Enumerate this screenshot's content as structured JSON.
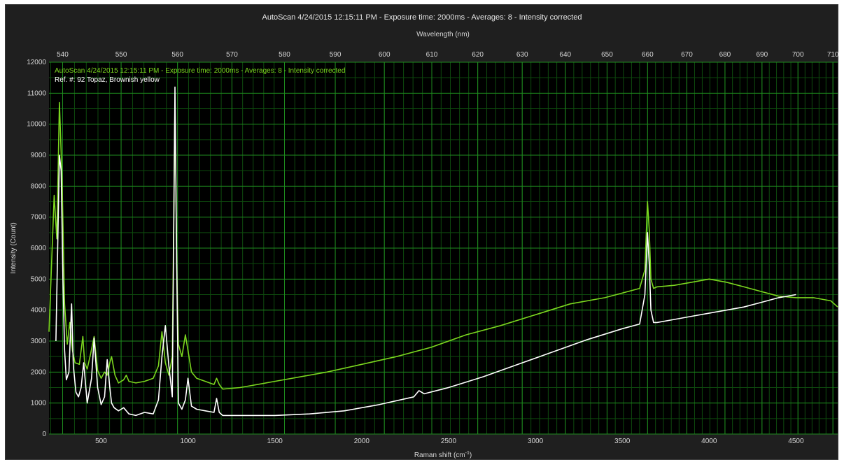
{
  "window_title": "AutoScan 4/24/2015 12:15:11 PM - Exposure time: 2000ms - Averages: 8 - Intensity corrected",
  "colors": {
    "background": "#1f1f1f",
    "plot_background": "#000000",
    "major_grid": "#1f8c1f",
    "minor_grid": "#0e4a0e",
    "sample_series": "#7bd61f",
    "reference_series": "#ffffff",
    "text": "#d6d6d6"
  },
  "chart_data": {
    "type": "line",
    "title": "AutoScan 4/24/2015 12:15:11 PM - Exposure time: 2000ms - Averages: 8 - Intensity corrected",
    "xlabel": "Raman shift (cm",
    "xlabel_sup": "-1",
    "xlabel_suffix": ")",
    "x2label": "Wavelength (nm)",
    "ylabel": "Intensity (Count)",
    "xlim": [
      200,
      4740
    ],
    "ylim": [
      0,
      12000
    ],
    "x_ticks": [
      500,
      1000,
      1500,
      2000,
      2500,
      3000,
      3500,
      4000,
      4500
    ],
    "y_ticks": [
      0,
      1000,
      2000,
      3000,
      4000,
      5000,
      6000,
      7000,
      8000,
      9000,
      10000,
      11000,
      12000
    ],
    "wavelength_ticks": [
      540,
      550,
      560,
      570,
      580,
      590,
      600,
      610,
      620,
      630,
      640,
      650,
      660,
      670,
      680,
      690,
      700,
      710
    ],
    "grid": true,
    "legend_placement": "top-left",
    "series": [
      {
        "name": "AutoScan 4/24/2015 12:15:11 PM - Exposure time: 2000ms - Averages: 8 - Intensity corrected",
        "color": "#7bd61f",
        "x": [
          200,
          215,
          230,
          245,
          260,
          275,
          290,
          305,
          320,
          335,
          350,
          375,
          395,
          405,
          420,
          440,
          460,
          480,
          500,
          520,
          535,
          550,
          560,
          580,
          600,
          630,
          645,
          660,
          700,
          750,
          800,
          830,
          850,
          870,
          890,
          910,
          925,
          935,
          945,
          965,
          985,
          1000,
          1020,
          1050,
          1100,
          1150,
          1165,
          1180,
          1200,
          1300,
          1500,
          1800,
          2000,
          2200,
          2400,
          2600,
          2800,
          3000,
          3200,
          3400,
          3600,
          3630,
          3645,
          3655,
          3665,
          3680,
          3700,
          3800,
          3900,
          4000,
          4100,
          4200,
          4300,
          4400,
          4500,
          4600,
          4700,
          4740
        ],
        "y": [
          3300,
          5500,
          7700,
          6300,
          10700,
          8300,
          4200,
          2900,
          3600,
          2700,
          2300,
          2250,
          3150,
          2300,
          2100,
          2600,
          3150,
          2050,
          1800,
          2000,
          1900,
          2300,
          2500,
          1900,
          1650,
          1750,
          1900,
          1700,
          1650,
          1700,
          1800,
          2200,
          3300,
          2300,
          1900,
          2500,
          10700,
          5500,
          2900,
          2500,
          3200,
          2700,
          2000,
          1800,
          1700,
          1600,
          1800,
          1600,
          1450,
          1500,
          1700,
          2000,
          2250,
          2500,
          2800,
          3200,
          3500,
          3850,
          4200,
          4400,
          4700,
          5300,
          7500,
          6600,
          5000,
          4700,
          4750,
          4800,
          4900,
          5000,
          4900,
          4750,
          4600,
          4450,
          4400,
          4400,
          4300,
          4100
        ]
      },
      {
        "name": "Ref. #: 92 Topaz, Brownish yellow",
        "color": "#ffffff",
        "x": [
          240,
          250,
          260,
          270,
          280,
          290,
          300,
          315,
          330,
          340,
          355,
          370,
          385,
          400,
          420,
          445,
          460,
          480,
          500,
          520,
          535,
          550,
          560,
          575,
          600,
          630,
          645,
          660,
          700,
          750,
          800,
          830,
          850,
          870,
          890,
          910,
          925,
          935,
          945,
          965,
          985,
          1000,
          1020,
          1050,
          1100,
          1150,
          1165,
          1180,
          1200,
          1300,
          1500,
          1700,
          1900,
          2100,
          2300,
          2330,
          2360,
          2500,
          2700,
          2900,
          3100,
          3300,
          3500,
          3600,
          3630,
          3645,
          3655,
          3665,
          3680,
          3700,
          3800,
          3900,
          4000,
          4100,
          4200,
          4300,
          4400,
          4500
        ],
        "y": [
          3000,
          6000,
          9000,
          8500,
          5000,
          2700,
          1750,
          2000,
          4200,
          2200,
          1350,
          1200,
          1500,
          2300,
          1000,
          1800,
          3100,
          1500,
          950,
          1200,
          2400,
          1500,
          1000,
          850,
          750,
          850,
          750,
          650,
          600,
          700,
          650,
          1100,
          2500,
          3500,
          2200,
          1200,
          11200,
          5500,
          1000,
          800,
          1100,
          1800,
          900,
          800,
          750,
          700,
          1150,
          700,
          600,
          600,
          600,
          650,
          750,
          950,
          1200,
          1400,
          1300,
          1500,
          1850,
          2250,
          2650,
          3050,
          3400,
          3550,
          4500,
          6500,
          5500,
          4000,
          3600,
          3600,
          3700,
          3800,
          3900,
          4000,
          4100,
          4250,
          4400,
          4500
        ]
      }
    ]
  }
}
